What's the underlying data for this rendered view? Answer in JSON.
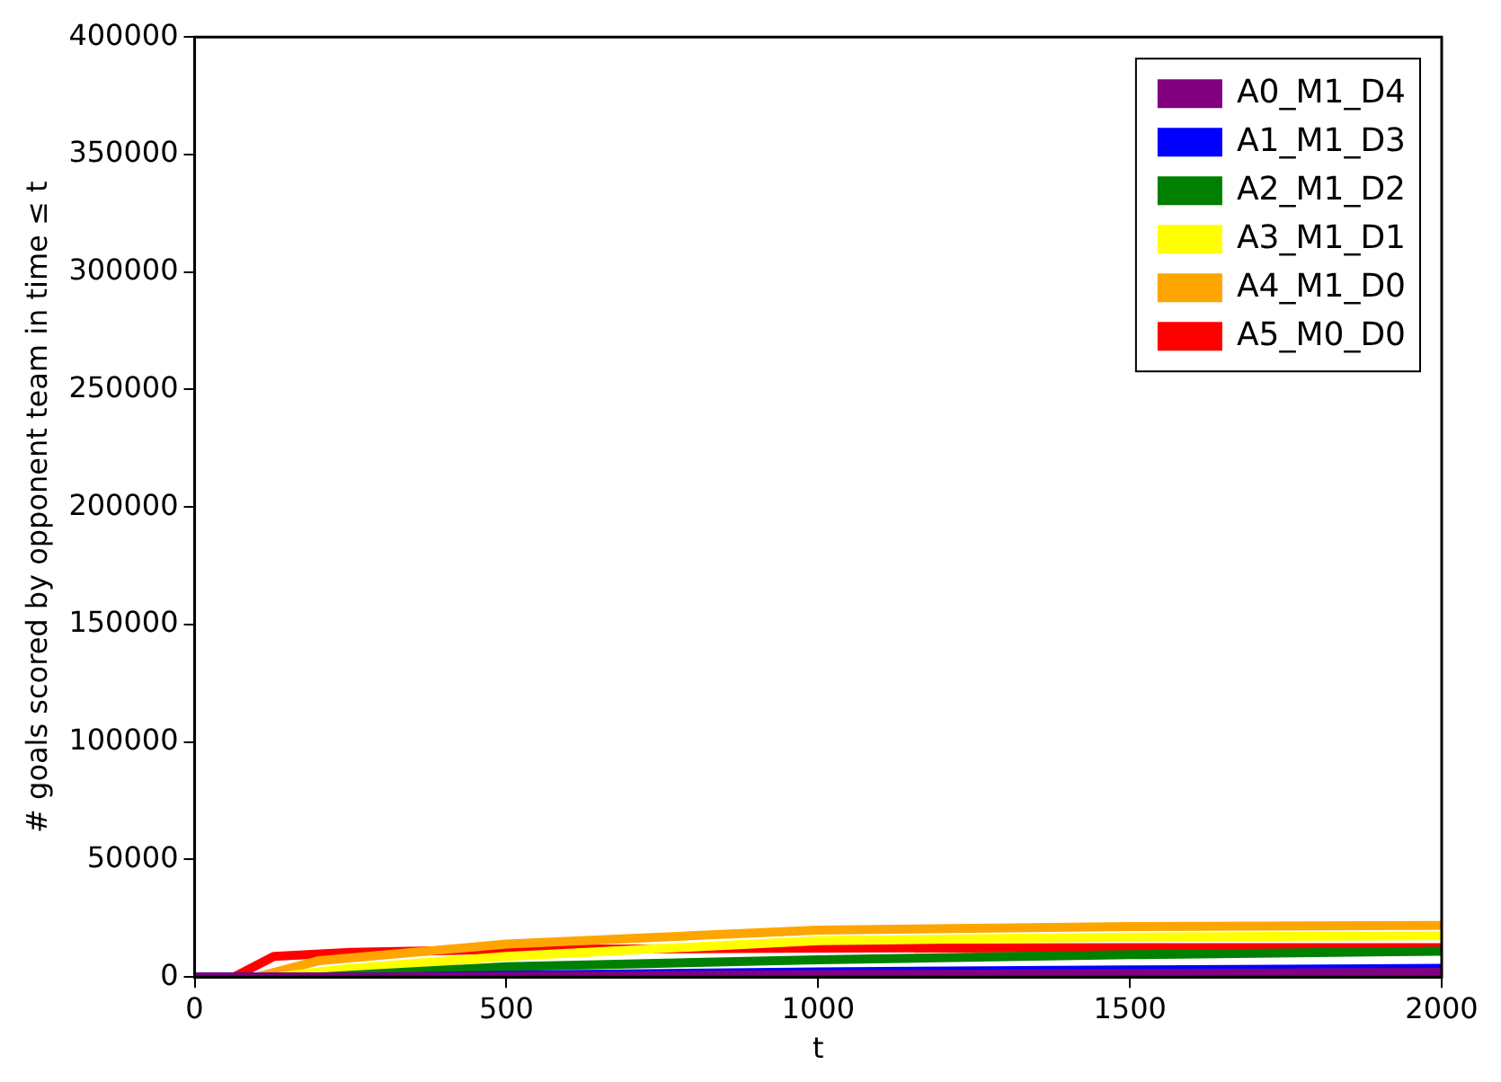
{
  "chart_data": {
    "type": "line",
    "xlabel": "t",
    "ylabel": "# goals scored by opponent team in time ≤ t",
    "xlim": [
      0,
      2000
    ],
    "xticks": [
      0,
      500,
      1000,
      1500,
      2000
    ],
    "ylim": [
      0,
      400000
    ],
    "yticks": [
      0,
      50000,
      100000,
      150000,
      200000,
      250000,
      300000,
      350000,
      400000
    ],
    "grid": false,
    "legend": "top right",
    "marker": "none",
    "line_style": "solid",
    "series": [
      {
        "name": "A0_M1_D4",
        "color": "#800080",
        "x": [
          0,
          300,
          500,
          1000,
          1500,
          2000
        ],
        "values": [
          0,
          0,
          300,
          1000,
          1500,
          2000
        ]
      },
      {
        "name": "A1_M1_D3",
        "color": "#0000ff",
        "x": [
          0,
          300,
          500,
          1000,
          1500,
          2000
        ],
        "values": [
          0,
          0,
          700,
          2200,
          3000,
          3700
        ]
      },
      {
        "name": "A2_M1_D2",
        "color": "#008000",
        "x": [
          0,
          200,
          300,
          500,
          1000,
          1500,
          2000
        ],
        "values": [
          0,
          0,
          1500,
          4400,
          7300,
          9500,
          11000
        ]
      },
      {
        "name": "A3_M1_D1",
        "color": "#ffff00",
        "x": [
          0,
          130,
          250,
          500,
          1000,
          1500,
          2000
        ],
        "values": [
          0,
          0,
          3700,
          8800,
          15500,
          17000,
          17600
        ]
      },
      {
        "name": "A4_M1_D0",
        "color": "#ffa500",
        "x": [
          0,
          100,
          200,
          500,
          1000,
          1500,
          2000
        ],
        "values": [
          0,
          0,
          7000,
          14000,
          20000,
          21500,
          22000
        ]
      },
      {
        "name": "A5_M0_D0",
        "color": "#ff0000",
        "x": [
          0,
          63,
          127,
          250,
          500,
          1000,
          1500,
          2000
        ],
        "values": [
          0,
          0,
          8800,
          10500,
          11700,
          12300,
          12500,
          12500
        ]
      }
    ]
  }
}
